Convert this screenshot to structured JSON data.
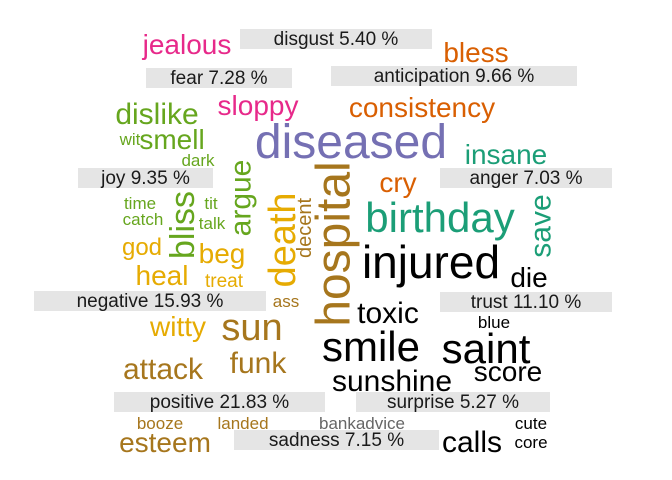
{
  "chart_data": {
    "type": "wordcloud",
    "title": "",
    "categories": [
      {
        "label": "disgust",
        "percent": 5.4,
        "display": "disgust 5.40 %",
        "color": "#1a1a1a"
      },
      {
        "label": "fear",
        "percent": 7.28,
        "display": "fear 7.28 %",
        "color": "#1a1a1a"
      },
      {
        "label": "anticipation",
        "percent": 9.66,
        "display": "anticipation 9.66 %",
        "color": "#1a1a1a"
      },
      {
        "label": "joy",
        "percent": 9.35,
        "display": "joy 9.35 %",
        "color": "#1a1a1a"
      },
      {
        "label": "anger",
        "percent": 7.03,
        "display": "anger 7.03 %",
        "color": "#1a1a1a"
      },
      {
        "label": "negative",
        "percent": 15.93,
        "display": "negative 15.93 %",
        "color": "#1a1a1a"
      },
      {
        "label": "trust",
        "percent": 11.1,
        "display": "trust 11.10 %",
        "color": "#1a1a1a"
      },
      {
        "label": "positive",
        "percent": 21.83,
        "display": "positive 21.83 %",
        "color": "#1a1a1a"
      },
      {
        "label": "surprise",
        "percent": 5.27,
        "display": "surprise 5.27 %",
        "color": "#1a1a1a"
      },
      {
        "label": "sadness",
        "percent": 7.15,
        "display": "sadness 7.15 %",
        "color": "#1a1a1a"
      }
    ],
    "words": [
      {
        "text": "jealous",
        "category": "disgust",
        "color": "#e7298a",
        "rotate": false
      },
      {
        "text": "sloppy",
        "category": "disgust",
        "color": "#e7298a",
        "rotate": false
      },
      {
        "text": "bless",
        "category": "anticipation",
        "color": "#d95f02",
        "rotate": false
      },
      {
        "text": "consistency",
        "category": "anticipation",
        "color": "#d95f02",
        "rotate": false
      },
      {
        "text": "cry",
        "category": "anticipation",
        "color": "#d95f02",
        "rotate": false
      },
      {
        "text": "dislike",
        "category": "fear",
        "color": "#66a61e",
        "rotate": false
      },
      {
        "text": "wit",
        "category": "fear",
        "color": "#66a61e",
        "rotate": false
      },
      {
        "text": "smell",
        "category": "fear",
        "color": "#66a61e",
        "rotate": false
      },
      {
        "text": "dark",
        "category": "fear",
        "color": "#66a61e",
        "rotate": false
      },
      {
        "text": "time",
        "category": "fear",
        "color": "#66a61e",
        "rotate": false
      },
      {
        "text": "tit",
        "category": "fear",
        "color": "#66a61e",
        "rotate": false
      },
      {
        "text": "catch",
        "category": "fear",
        "color": "#66a61e",
        "rotate": false
      },
      {
        "text": "talk",
        "category": "fear",
        "color": "#66a61e",
        "rotate": false
      },
      {
        "text": "bliss",
        "category": "fear",
        "color": "#66a61e",
        "rotate": true
      },
      {
        "text": "argue",
        "category": "fear",
        "color": "#66a61e",
        "rotate": true
      },
      {
        "text": "diseased",
        "category": "anger",
        "color": "#7570b3",
        "rotate": false
      },
      {
        "text": "insane",
        "category": "anger",
        "color": "#1b9e77",
        "rotate": false
      },
      {
        "text": "birthday",
        "category": "anger",
        "color": "#1b9e77",
        "rotate": false
      },
      {
        "text": "save",
        "category": "anger",
        "color": "#1b9e77",
        "rotate": true
      },
      {
        "text": "god",
        "category": "joy",
        "color": "#e6ab02",
        "rotate": false
      },
      {
        "text": "beg",
        "category": "joy",
        "color": "#e6ab02",
        "rotate": false
      },
      {
        "text": "heal",
        "category": "joy",
        "color": "#e6ab02",
        "rotate": false
      },
      {
        "text": "treat",
        "category": "joy",
        "color": "#e6ab02",
        "rotate": false
      },
      {
        "text": "witty",
        "category": "joy",
        "color": "#e6ab02",
        "rotate": false
      },
      {
        "text": "death",
        "category": "negative",
        "color": "#e6ab02",
        "rotate": true
      },
      {
        "text": "decent",
        "category": "negative",
        "color": "#a6761d",
        "rotate": true
      },
      {
        "text": "hospital",
        "category": "negative",
        "color": "#a6761d",
        "rotate": true
      },
      {
        "text": "ass",
        "category": "negative",
        "color": "#a6761d",
        "rotate": false
      },
      {
        "text": "sun",
        "category": "negative",
        "color": "#a6761d",
        "rotate": false
      },
      {
        "text": "funk",
        "category": "negative",
        "color": "#a6761d",
        "rotate": false
      },
      {
        "text": "attack",
        "category": "negative",
        "color": "#a6761d",
        "rotate": false
      },
      {
        "text": "esteem",
        "category": "positive",
        "color": "#a6761d",
        "rotate": false
      },
      {
        "text": "booze",
        "category": "positive",
        "color": "#a6761d",
        "rotate": false
      },
      {
        "text": "landed",
        "category": "positive",
        "color": "#a6761d",
        "rotate": false
      },
      {
        "text": "bankadvice",
        "category": "positive",
        "color": "#666666",
        "rotate": false
      },
      {
        "text": "injured",
        "category": "trust",
        "color": "#000000",
        "rotate": false
      },
      {
        "text": "die",
        "category": "trust",
        "color": "#000000",
        "rotate": false
      },
      {
        "text": "toxic",
        "category": "trust",
        "color": "#000000",
        "rotate": false
      },
      {
        "text": "blue",
        "category": "trust",
        "color": "#000000",
        "rotate": false
      },
      {
        "text": "smile",
        "category": "trust",
        "color": "#000000",
        "rotate": false
      },
      {
        "text": "saint",
        "category": "trust",
        "color": "#000000",
        "rotate": false
      },
      {
        "text": "sunshine",
        "category": "trust",
        "color": "#000000",
        "rotate": false
      },
      {
        "text": "score",
        "category": "trust",
        "color": "#000000",
        "rotate": false
      },
      {
        "text": "cute",
        "category": "surprise",
        "color": "#000000",
        "rotate": false
      },
      {
        "text": "core",
        "category": "surprise",
        "color": "#000000",
        "rotate": false
      },
      {
        "text": "calls",
        "category": "sadness",
        "color": "#000000",
        "rotate": false
      }
    ]
  }
}
